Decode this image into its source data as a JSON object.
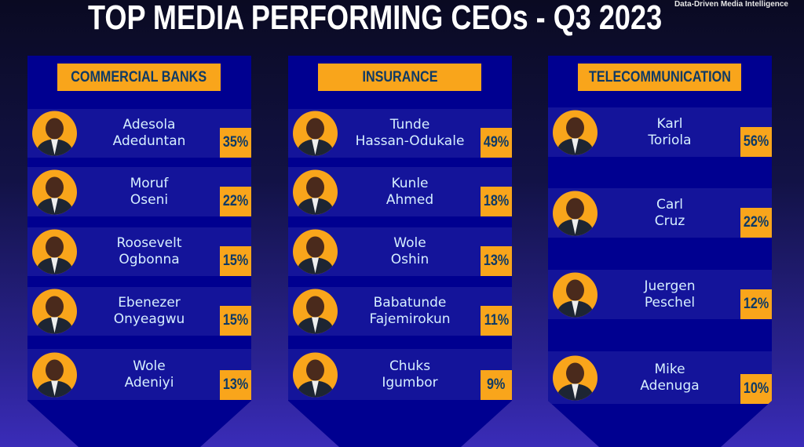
{
  "title": "TOP MEDIA PERFORMING CEOs - Q3 2023",
  "tagline": "Data-Driven Media Intelligence",
  "colors": {
    "panel": "#000090",
    "row": "#14149a",
    "accent": "#f9a51b",
    "name": "#d6efff"
  },
  "columns": [
    {
      "category": "COMMERCIAL BANKS",
      "ceos": [
        {
          "first": "Adesola",
          "last": "Adeduntan",
          "pct": "35%"
        },
        {
          "first": "Moruf",
          "last": "Oseni",
          "pct": "22%"
        },
        {
          "first": "Roosevelt",
          "last": "Ogbonna",
          "pct": "15%"
        },
        {
          "first": "Ebenezer",
          "last": "Onyeagwu",
          "pct": "15%"
        },
        {
          "first": "Wole",
          "last": "Adeniyi",
          "pct": "13%"
        }
      ]
    },
    {
      "category": "INSURANCE",
      "ceos": [
        {
          "first": "Tunde",
          "last": "Hassan-Odukale",
          "pct": "49%"
        },
        {
          "first": "Kunle",
          "last": "Ahmed",
          "pct": "18%"
        },
        {
          "first": "Wole",
          "last": "Oshin",
          "pct": "13%"
        },
        {
          "first": "Babatunde",
          "last": "Fajemirokun",
          "pct": "11%"
        },
        {
          "first": "Chuks",
          "last": "Igumbor",
          "pct": "9%"
        }
      ]
    },
    {
      "category": "TELECOMMUNICATION",
      "ceos": [
        {
          "first": "Karl",
          "last": "Toriola",
          "pct": "56%"
        },
        {
          "first": "Carl",
          "last": "Cruz",
          "pct": "22%"
        },
        {
          "first": "Juergen",
          "last": "Peschel",
          "pct": "12%"
        },
        {
          "first": "Mike",
          "last": "Adenuga",
          "pct": "10%"
        }
      ]
    }
  ]
}
